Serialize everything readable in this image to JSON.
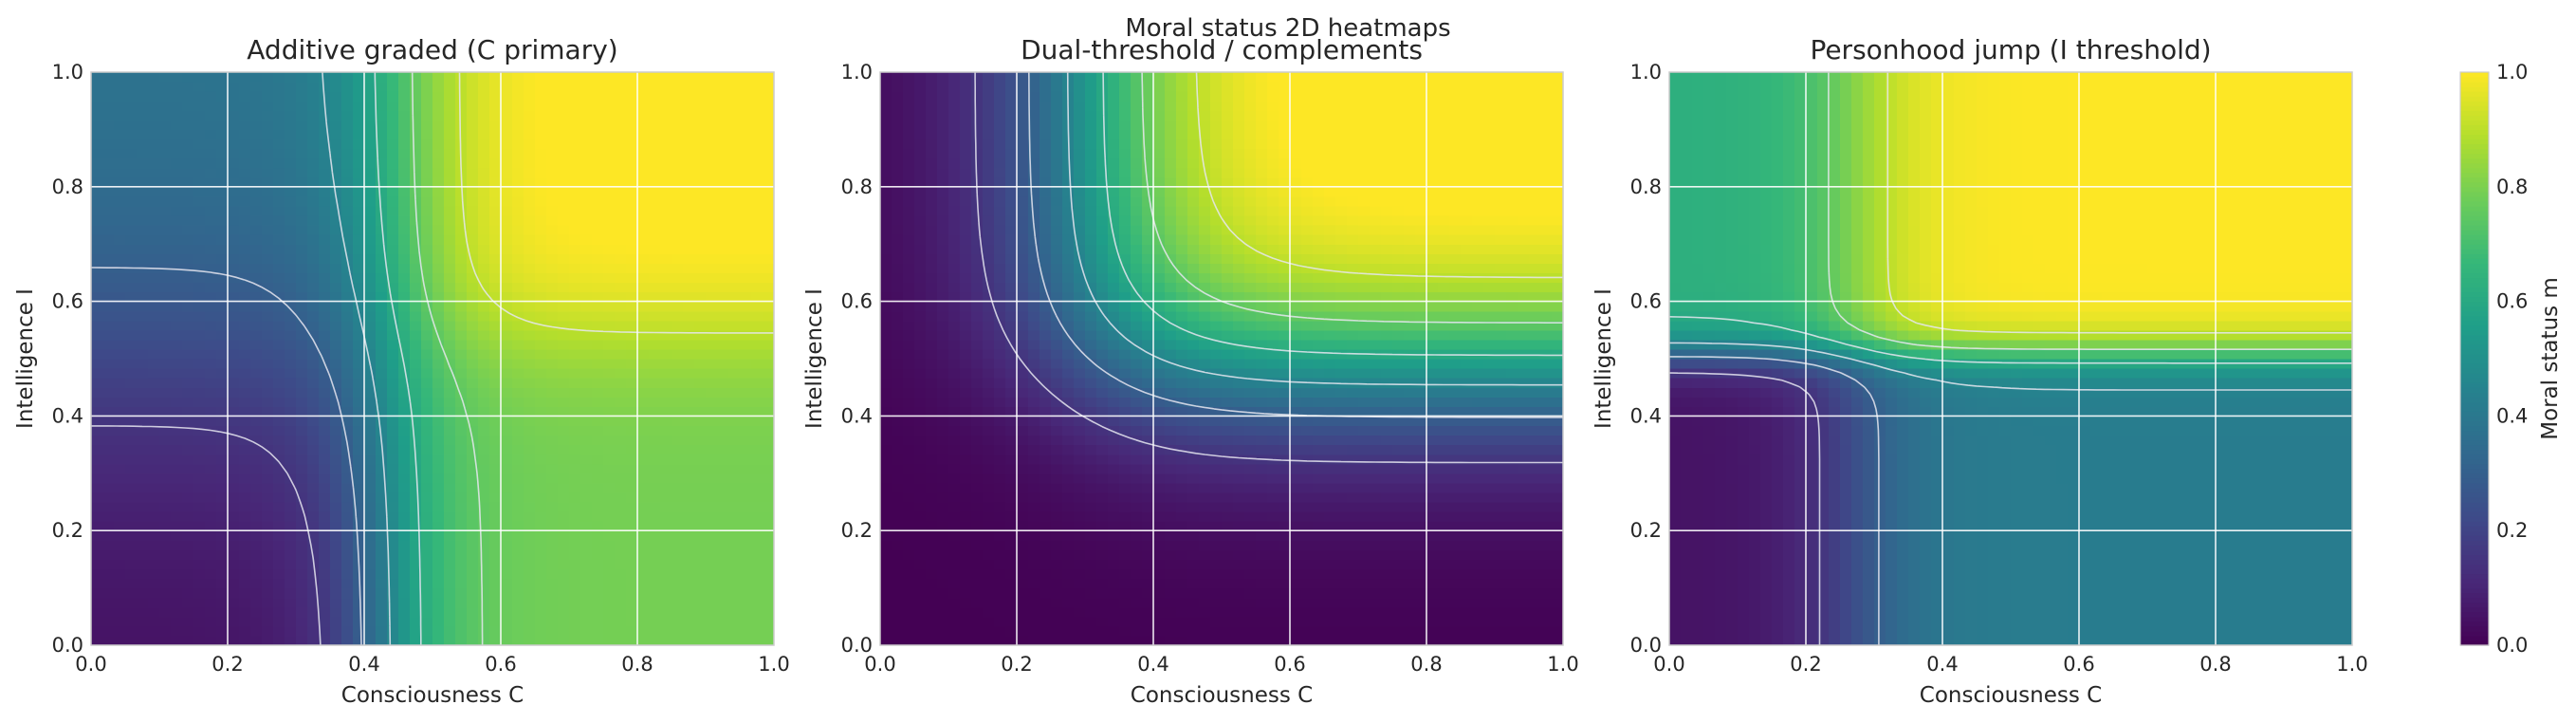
{
  "suptitle": "Moral status 2D heatmaps",
  "colorbar": {
    "label": "Moral status m",
    "ticks": [
      "0.0",
      "0.2",
      "0.4",
      "0.6",
      "0.8",
      "1.0"
    ],
    "colormap": "viridis",
    "range": [
      0,
      1
    ]
  },
  "chart_data": [
    {
      "type": "heatmap",
      "title": "Additive graded (C primary)",
      "xlabel": "Consciousness C",
      "ylabel": "Intelligence I",
      "xlim": [
        0,
        1
      ],
      "ylim": [
        0,
        1
      ],
      "xticks": [
        "0.0",
        "0.2",
        "0.4",
        "0.6",
        "0.8",
        "1.0"
      ],
      "yticks": [
        "0.0",
        "0.2",
        "0.4",
        "0.6",
        "0.8",
        "1.0"
      ],
      "grid": true,
      "contours": true,
      "description_values": {
        "corner_C0_I0": 0.05,
        "corner_C1_I0": 0.75,
        "corner_C0_I1": 0.35,
        "corner_C1_I1": 0.98
      }
    },
    {
      "type": "heatmap",
      "title": "Dual-threshold / complements",
      "xlabel": "Consciousness C",
      "ylabel": "Intelligence I",
      "xlim": [
        0,
        1
      ],
      "ylim": [
        0,
        1
      ],
      "xticks": [
        "0.0",
        "0.2",
        "0.4",
        "0.6",
        "0.8",
        "1.0"
      ],
      "yticks": [
        "0.0",
        "0.2",
        "0.4",
        "0.6",
        "0.8",
        "1.0"
      ],
      "grid": true,
      "contours": true,
      "description_values": {
        "corner_C0_I0": 0.0,
        "corner_C1_I0": 0.05,
        "corner_C0_I1": 0.25,
        "corner_C1_I1": 1.0
      }
    },
    {
      "type": "heatmap",
      "title": "Personhood jump (I threshold)",
      "xlabel": "Consciousness C",
      "ylabel": "Intelligence I",
      "xlim": [
        0,
        1
      ],
      "ylim": [
        0,
        1
      ],
      "xticks": [
        "0.0",
        "0.2",
        "0.4",
        "0.6",
        "0.8",
        "1.0"
      ],
      "yticks": [
        "0.0",
        "0.2",
        "0.4",
        "0.6",
        "0.8",
        "1.0"
      ],
      "grid": true,
      "contours": true,
      "description_values": {
        "corner_C0_I0": 0.02,
        "corner_C1_I0": 0.4,
        "corner_C0_I1": 0.6,
        "corner_C1_I1": 1.0
      }
    }
  ]
}
